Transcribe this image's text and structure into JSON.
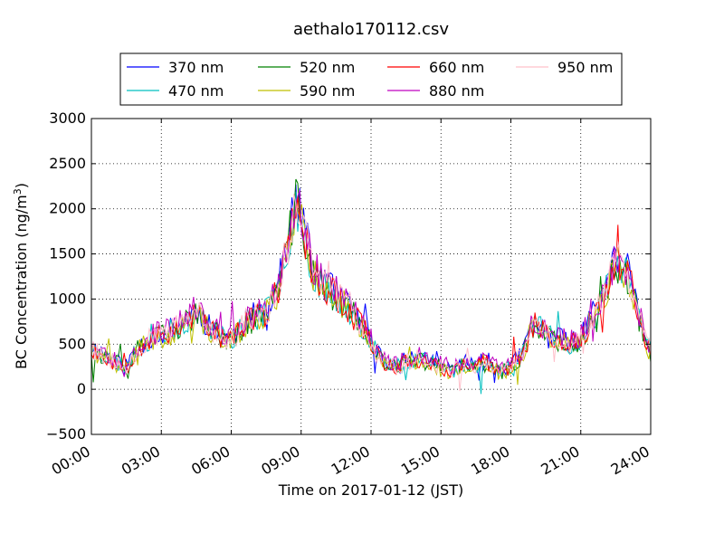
{
  "chart_data": {
    "type": "line",
    "title": "aethalo170112.csv",
    "xlabel": "Time on 2017-01-12 (JST)",
    "ylabel_main": "BC Concentration (ng/m",
    "ylabel_sup": "3",
    "ylabel_close": ")",
    "xlim": [
      0,
      24
    ],
    "ylim": [
      -500,
      3000
    ],
    "x_ticks": [
      {
        "value": 0,
        "label": "00:00"
      },
      {
        "value": 3,
        "label": "03:00"
      },
      {
        "value": 6,
        "label": "06:00"
      },
      {
        "value": 9,
        "label": "09:00"
      },
      {
        "value": 12,
        "label": "12:00"
      },
      {
        "value": 15,
        "label": "15:00"
      },
      {
        "value": 18,
        "label": "18:00"
      },
      {
        "value": 21,
        "label": "21:00"
      },
      {
        "value": 24,
        "label": "24:00"
      }
    ],
    "y_ticks": [
      {
        "value": -500,
        "label": "−500"
      },
      {
        "value": 0,
        "label": "0"
      },
      {
        "value": 500,
        "label": "500"
      },
      {
        "value": 1000,
        "label": "1000"
      },
      {
        "value": 1500,
        "label": "1500"
      },
      {
        "value": 2000,
        "label": "2000"
      },
      {
        "value": 2500,
        "label": "2500"
      },
      {
        "value": 3000,
        "label": "3000"
      }
    ],
    "grid": true,
    "legend_position": "top-center-outside",
    "x_time_points": [
      0,
      0.5,
      1,
      1.5,
      2,
      2.5,
      3,
      3.5,
      4,
      4.5,
      5,
      5.5,
      6,
      6.5,
      7,
      7.5,
      8,
      8.5,
      8.75,
      9,
      9.5,
      10,
      10.5,
      11,
      11.5,
      12,
      12.5,
      13,
      13.5,
      14,
      14.5,
      15,
      15.5,
      16,
      16.5,
      17,
      17.5,
      18,
      18.5,
      19,
      19.5,
      20,
      20.5,
      21,
      21.5,
      22,
      22.5,
      23,
      23.5,
      24
    ],
    "base_profile": [
      450,
      380,
      300,
      250,
      450,
      550,
      600,
      650,
      750,
      850,
      700,
      600,
      550,
      700,
      800,
      850,
      1100,
      1700,
      2100,
      1900,
      1300,
      1150,
      1050,
      900,
      750,
      550,
      300,
      250,
      300,
      350,
      300,
      250,
      200,
      280,
      250,
      300,
      200,
      230,
      400,
      750,
      600,
      550,
      500,
      550,
      800,
      1000,
      1400,
      1300,
      800,
      400
    ],
    "series": [
      {
        "name": "370 nm",
        "color": "#0000ff",
        "seed": 11,
        "offset": 20
      },
      {
        "name": "470 nm",
        "color": "#00bfbf",
        "seed": 23,
        "offset": 0
      },
      {
        "name": "520 nm",
        "color": "#008000",
        "seed": 37,
        "offset": -10
      },
      {
        "name": "590 nm",
        "color": "#bfbf00",
        "seed": 41,
        "offset": -20
      },
      {
        "name": "660 nm",
        "color": "#ff0000",
        "seed": 53,
        "offset": -5
      },
      {
        "name": "880 nm",
        "color": "#bf00bf",
        "seed": 67,
        "offset": 40
      },
      {
        "name": "950 nm",
        "color": "#ffc0cb",
        "seed": 79,
        "offset": 0
      }
    ]
  }
}
